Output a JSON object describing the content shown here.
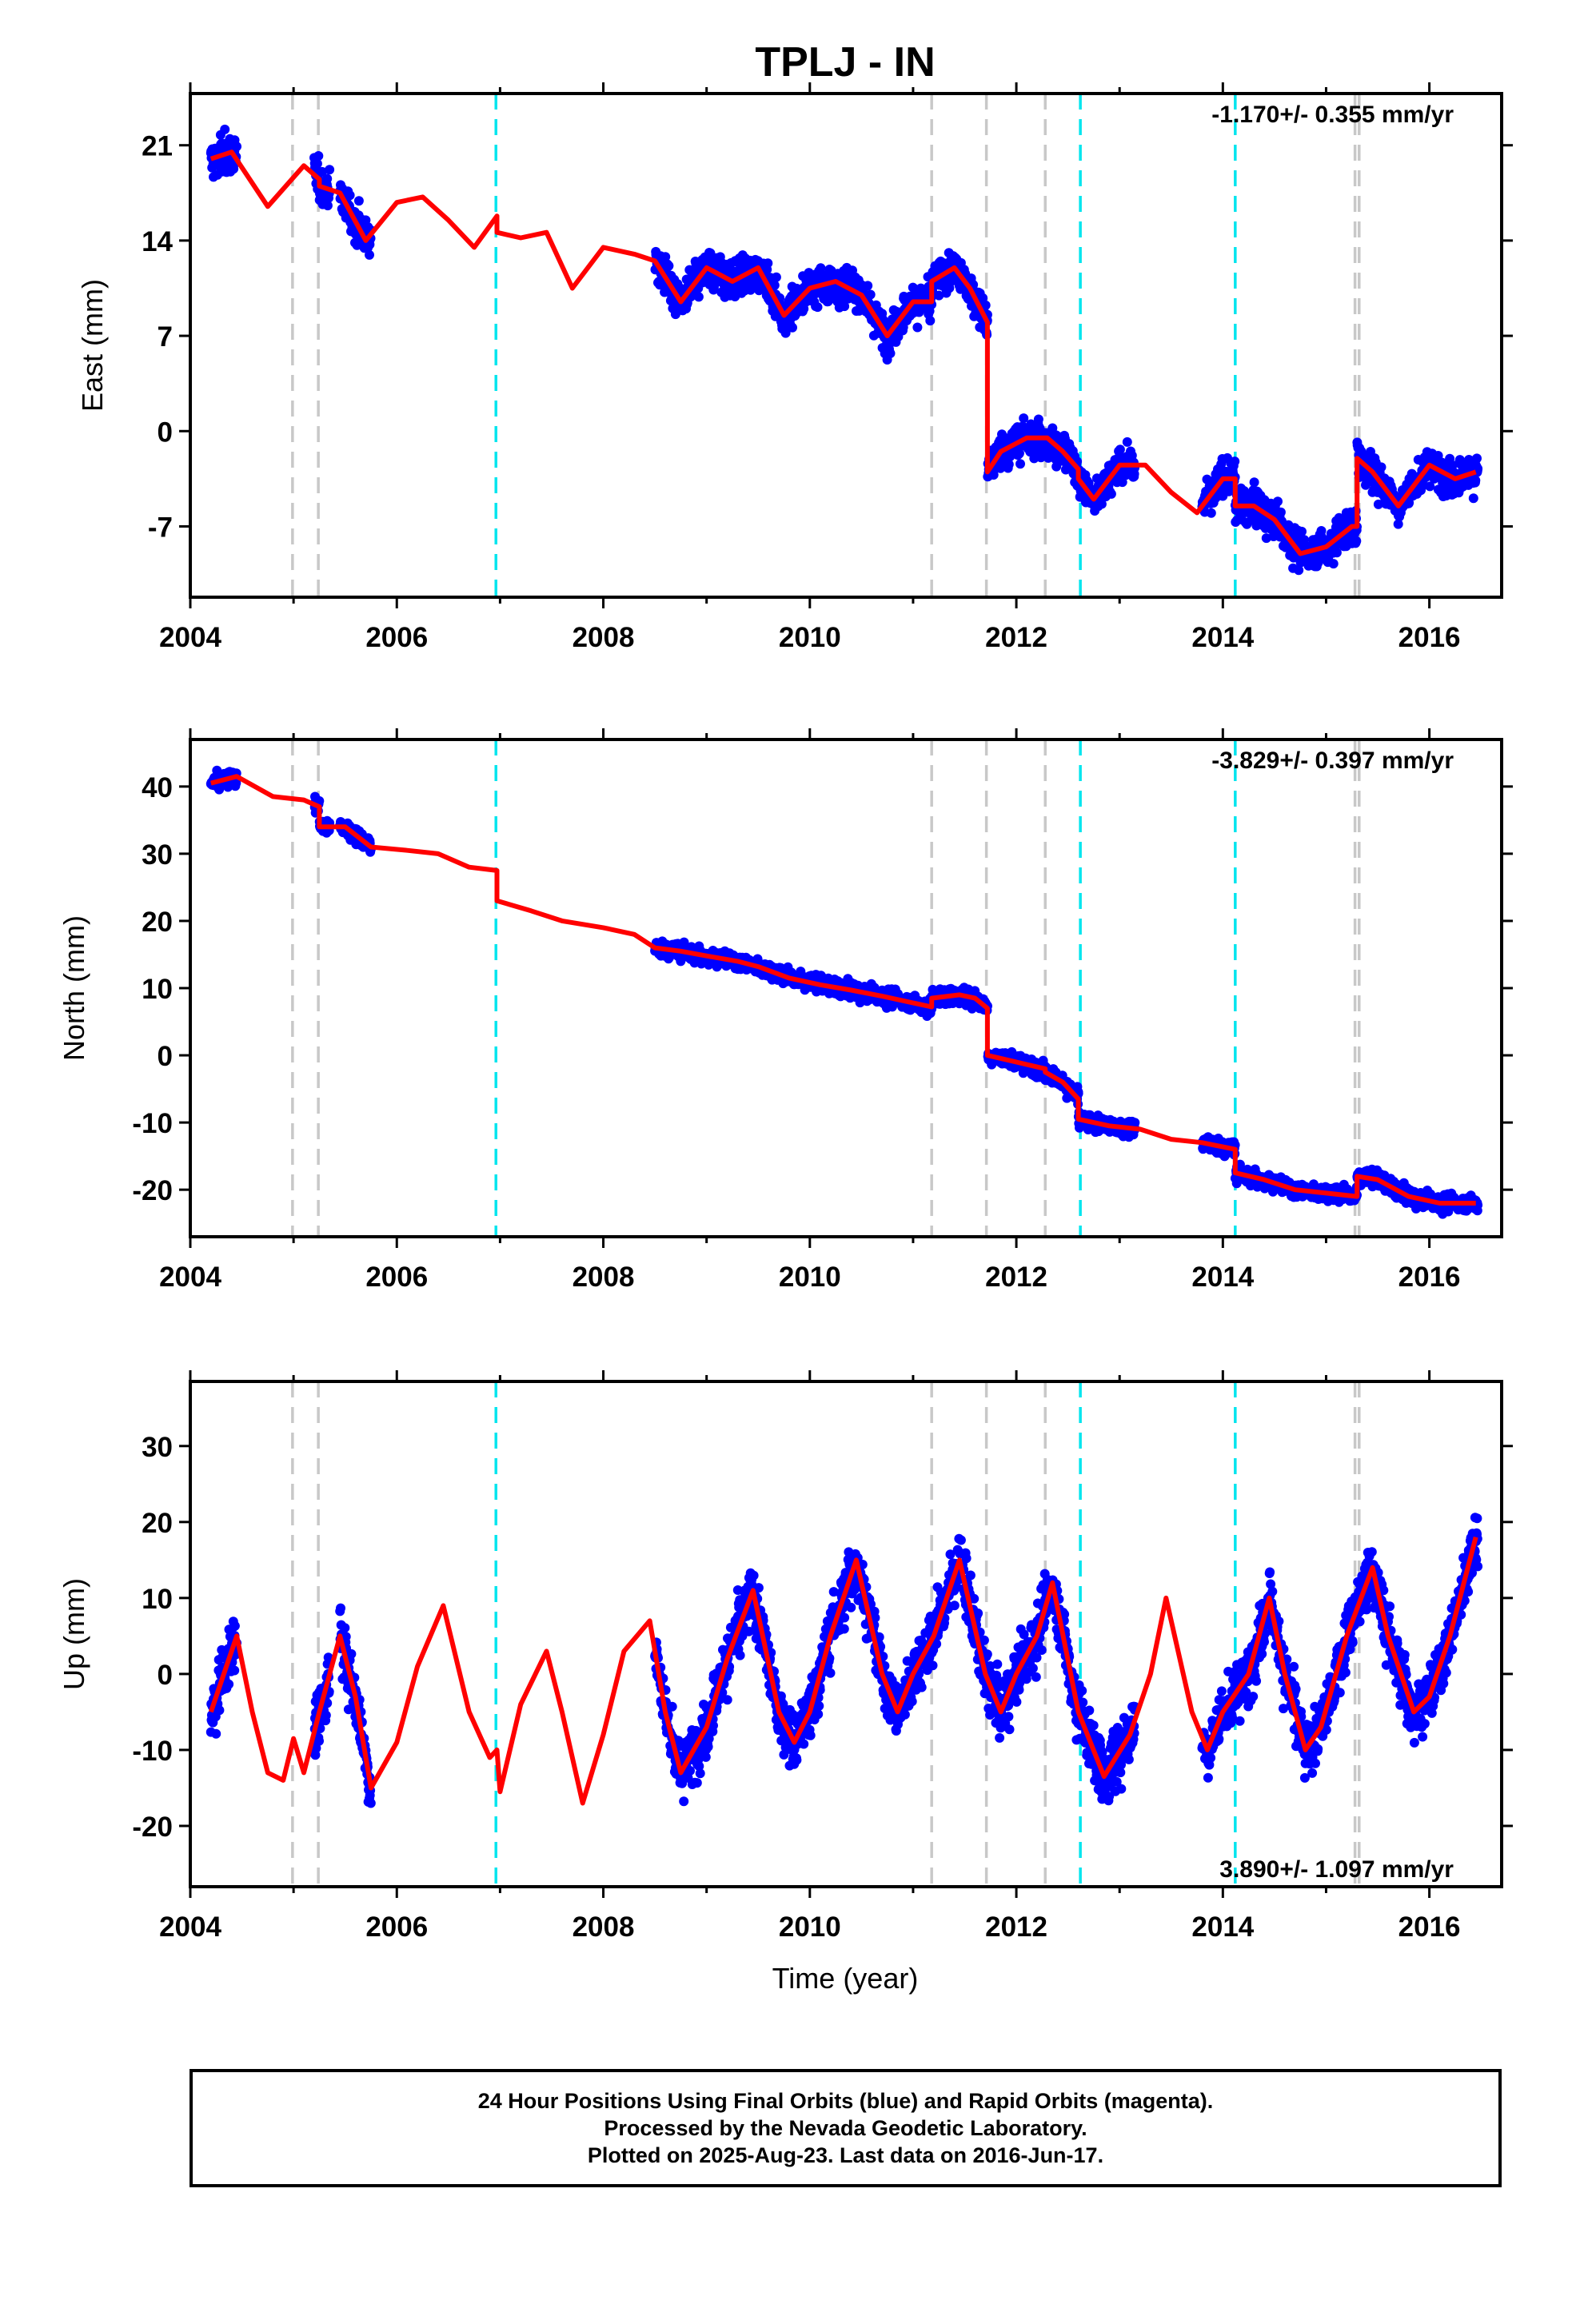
{
  "title": "TPLJ - IN",
  "xlabel": "Time (year)",
  "footer": {
    "line1": "24 Hour Positions Using Final Orbits (blue) and Rapid Orbits (magenta).",
    "line2": "Processed by the Nevada Geodetic Laboratory.",
    "line3": "Plotted on 2025-Aug-23. Last data on 2016-Jun-17."
  },
  "colors": {
    "data_points": "#0000ff",
    "model_line": "#ff0000",
    "equipment_change": "#c8c8c8",
    "earthquake": "#00e5ee"
  },
  "chart_data": [
    {
      "type": "scatter",
      "component": "East",
      "ylabel": "East (mm)",
      "rate_label": "-1.170+/- 0.355 mm/yr",
      "rate_position": "top-right",
      "xlim": [
        2004.0,
        2016.7
      ],
      "ylim": [
        -12.2,
        24.8
      ],
      "yticks": [
        -7,
        0,
        7,
        14,
        21
      ],
      "xticks": [
        2004,
        2006,
        2008,
        2010,
        2012,
        2014,
        2016
      ],
      "data_ranges": [
        [
          2004.2,
          2004.45
        ],
        [
          2005.2,
          2005.35
        ],
        [
          2005.45,
          2005.75
        ],
        [
          2008.5,
          2011.72
        ],
        [
          2011.72,
          2012.6
        ],
        [
          2012.6,
          2013.15
        ],
        [
          2013.8,
          2016.47
        ]
      ],
      "model": {
        "x": [
          2004.2,
          2004.4,
          2004.75,
          2005.1,
          2005.25,
          2005.25,
          2005.45,
          2005.7,
          2006.0,
          2006.25,
          2006.5,
          2006.75,
          2006.97,
          2006.97,
          2007.2,
          2007.45,
          2007.7,
          2008.0,
          2008.3,
          2008.5,
          2008.75,
          2009.0,
          2009.25,
          2009.5,
          2009.75,
          2010.0,
          2010.25,
          2010.5,
          2010.75,
          2011.0,
          2011.18,
          2011.18,
          2011.4,
          2011.55,
          2011.72,
          2011.72,
          2011.85,
          2012.1,
          2012.3,
          2012.45,
          2012.6,
          2012.6,
          2012.75,
          2013.0,
          2013.25,
          2013.5,
          2013.75,
          2014.0,
          2014.12,
          2014.12,
          2014.3,
          2014.5,
          2014.75,
          2015.0,
          2015.25,
          2015.3,
          2015.3,
          2015.45,
          2015.7,
          2016.0,
          2016.25,
          2016.45
        ],
        "y": [
          20.0,
          20.5,
          16.5,
          19.5,
          18.5,
          18.0,
          17.5,
          14.0,
          16.8,
          17.2,
          15.5,
          13.5,
          15.8,
          14.6,
          14.2,
          14.6,
          10.5,
          13.5,
          13.0,
          12.5,
          9.5,
          12.0,
          11.0,
          12.0,
          8.5,
          10.5,
          11.0,
          10.0,
          7.0,
          9.5,
          9.5,
          11.0,
          12.0,
          10.5,
          8.0,
          -3.0,
          -1.5,
          -0.5,
          -0.5,
          -1.5,
          -2.8,
          -3.5,
          -5.0,
          -2.5,
          -2.5,
          -4.5,
          -6.0,
          -3.5,
          -3.5,
          -5.5,
          -5.5,
          -6.5,
          -9.0,
          -8.5,
          -7.0,
          -7.0,
          -2.0,
          -3.0,
          -5.5,
          -2.5,
          -3.5,
          -3.0
        ]
      },
      "events_equipment": [
        2004.99,
        2005.24,
        2011.18,
        2011.71,
        2012.28,
        2015.28,
        2015.32
      ],
      "events_earthquake": [
        2006.96,
        2012.62,
        2014.12
      ]
    },
    {
      "type": "scatter",
      "component": "North",
      "ylabel": "North (mm)",
      "rate_label": "-3.829+/- 0.397 mm/yr",
      "rate_position": "top-right",
      "xlim": [
        2004.0,
        2016.7
      ],
      "ylim": [
        -27.0,
        47.0
      ],
      "yticks": [
        -20,
        -10,
        0,
        10,
        20,
        30,
        40
      ],
      "xticks": [
        2004,
        2006,
        2008,
        2010,
        2012,
        2014,
        2016
      ],
      "data_ranges": [
        [
          2004.2,
          2004.45
        ],
        [
          2005.2,
          2005.35
        ],
        [
          2005.45,
          2005.75
        ],
        [
          2008.5,
          2011.72
        ],
        [
          2011.72,
          2012.6
        ],
        [
          2012.6,
          2013.15
        ],
        [
          2013.8,
          2016.47
        ]
      ],
      "model": {
        "x": [
          2004.2,
          2004.45,
          2004.8,
          2005.1,
          2005.25,
          2005.25,
          2005.5,
          2005.75,
          2006.1,
          2006.4,
          2006.7,
          2006.97,
          2006.97,
          2007.3,
          2007.6,
          2008.0,
          2008.3,
          2008.5,
          2008.75,
          2009.0,
          2009.3,
          2009.5,
          2009.8,
          2010.1,
          2010.4,
          2010.7,
          2011.0,
          2011.18,
          2011.18,
          2011.45,
          2011.6,
          2011.72,
          2011.72,
          2012.0,
          2012.28,
          2012.28,
          2012.45,
          2012.6,
          2012.6,
          2012.9,
          2013.2,
          2013.5,
          2013.8,
          2014.12,
          2014.12,
          2014.4,
          2014.7,
          2015.0,
          2015.3,
          2015.3,
          2015.5,
          2015.8,
          2016.1,
          2016.45
        ],
        "y": [
          40.5,
          41.5,
          38.5,
          38.0,
          37.0,
          34.0,
          34.0,
          31.0,
          30.5,
          30.0,
          28.0,
          27.5,
          23.0,
          21.5,
          20.0,
          19.0,
          18.0,
          16.0,
          15.5,
          14.8,
          14.0,
          13.2,
          11.5,
          10.5,
          9.7,
          8.8,
          7.8,
          7.2,
          8.5,
          9.0,
          8.5,
          7.0,
          0.0,
          -1.0,
          -2.0,
          -2.5,
          -4.0,
          -6.5,
          -9.5,
          -10.5,
          -11.0,
          -12.5,
          -13.0,
          -14.0,
          -17.5,
          -18.5,
          -20.0,
          -20.5,
          -21.0,
          -18.0,
          -18.5,
          -21.0,
          -22.0,
          -22.0
        ]
      },
      "events_equipment": [
        2004.99,
        2005.24,
        2011.18,
        2011.71,
        2012.28,
        2015.28,
        2015.32
      ],
      "events_earthquake": [
        2006.96,
        2012.62,
        2014.12
      ]
    },
    {
      "type": "scatter",
      "component": "Up",
      "ylabel": "Up (mm)",
      "rate_label": "3.890+/- 1.097 mm/yr",
      "rate_position": "bottom-right",
      "xlim": [
        2004.0,
        2016.7
      ],
      "ylim": [
        -28.0,
        38.5
      ],
      "yticks": [
        -20,
        -10,
        0,
        10,
        20,
        30
      ],
      "xticks": [
        2004,
        2006,
        2008,
        2010,
        2012,
        2014,
        2016
      ],
      "data_ranges": [
        [
          2004.2,
          2004.45
        ],
        [
          2005.2,
          2005.35
        ],
        [
          2005.45,
          2005.75
        ],
        [
          2008.5,
          2011.72
        ],
        [
          2011.72,
          2012.6
        ],
        [
          2012.6,
          2013.15
        ],
        [
          2013.8,
          2016.47
        ]
      ],
      "model": {
        "x": [
          2004.2,
          2004.3,
          2004.45,
          2004.6,
          2004.75,
          2004.9,
          2005.0,
          2005.1,
          2005.25,
          2005.45,
          2005.6,
          2005.75,
          2006.0,
          2006.2,
          2006.45,
          2006.7,
          2006.9,
          2006.97,
          2007.0,
          2007.2,
          2007.45,
          2007.6,
          2007.8,
          2008.0,
          2008.2,
          2008.45,
          2008.6,
          2008.75,
          2009.0,
          2009.2,
          2009.45,
          2009.7,
          2009.85,
          2010.0,
          2010.2,
          2010.45,
          2010.7,
          2010.85,
          2011.0,
          2011.2,
          2011.45,
          2011.7,
          2011.85,
          2012.0,
          2012.2,
          2012.35,
          2012.6,
          2012.85,
          2013.1,
          2013.3,
          2013.45,
          2013.7,
          2013.85,
          2014.0,
          2014.1,
          2014.25,
          2014.45,
          2014.6,
          2014.8,
          2014.95,
          2015.2,
          2015.45,
          2015.6,
          2015.85,
          2016.0,
          2016.2,
          2016.45
        ],
        "y": [
          -5,
          -1,
          5,
          -5,
          -13,
          -14,
          -8.5,
          -13,
          -5,
          5,
          -3,
          -15,
          -9,
          1,
          9,
          -5,
          -11,
          -10,
          -15.5,
          -4,
          3,
          -5,
          -17,
          -8,
          3,
          7,
          -5,
          -13,
          -7,
          2,
          11,
          -5,
          -9,
          -5,
          5,
          15,
          0,
          -5,
          0,
          5,
          15,
          0,
          -5,
          0,
          5,
          12,
          -5,
          -13.5,
          -8,
          0,
          10,
          -5,
          -10,
          -5,
          -3,
          0,
          10,
          0,
          -10,
          -7,
          5,
          14,
          5,
          -5,
          -3,
          5,
          18
        ]
      },
      "events_equipment": [
        2004.99,
        2005.24,
        2011.18,
        2011.71,
        2012.28,
        2015.28,
        2015.32
      ],
      "events_earthquake": [
        2006.96,
        2012.62,
        2014.12
      ]
    }
  ]
}
